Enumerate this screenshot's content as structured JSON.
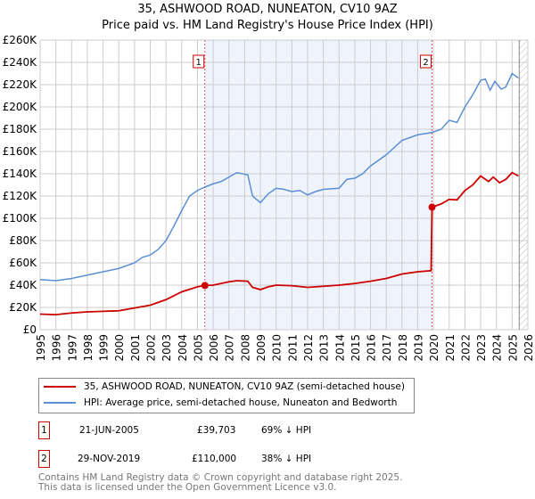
{
  "title_line1": "35, ASHWOOD ROAD, NUNEATON, CV10 9AZ",
  "title_line2": "Price paid vs. HM Land Registry's House Price Index (HPI)",
  "colors": {
    "price": "#cc0000",
    "hpi": "#5b8fd4",
    "shade": "#eef3fc",
    "grid": "#cccccc"
  },
  "chart_data": {
    "type": "line",
    "xlim": [
      1995,
      2026
    ],
    "ylim": [
      0,
      260000
    ],
    "y_ticks": [
      {
        "v": 0,
        "label": "£0"
      },
      {
        "v": 20000,
        "label": "£20K"
      },
      {
        "v": 40000,
        "label": "£40K"
      },
      {
        "v": 60000,
        "label": "£60K"
      },
      {
        "v": 80000,
        "label": "£80K"
      },
      {
        "v": 100000,
        "label": "£100K"
      },
      {
        "v": 120000,
        "label": "£120K"
      },
      {
        "v": 140000,
        "label": "£140K"
      },
      {
        "v": 160000,
        "label": "£160K"
      },
      {
        "v": 180000,
        "label": "£180K"
      },
      {
        "v": 200000,
        "label": "£200K"
      },
      {
        "v": 220000,
        "label": "£220K"
      },
      {
        "v": 240000,
        "label": "£240K"
      },
      {
        "v": 260000,
        "label": "£260K"
      }
    ],
    "x_ticks": [
      "1995",
      "1996",
      "1997",
      "1998",
      "1999",
      "2000",
      "2001",
      "2002",
      "2003",
      "2004",
      "2005",
      "2006",
      "2007",
      "2008",
      "2009",
      "2010",
      "2011",
      "2012",
      "2013",
      "2014",
      "2015",
      "2016",
      "2017",
      "2018",
      "2019",
      "2020",
      "2021",
      "2022",
      "2023",
      "2024",
      "2025",
      "2026"
    ],
    "series": [
      {
        "name": "35, ASHWOOD ROAD, NUNEATON, CV10 9AZ (semi-detached house)",
        "x": [
          1995,
          1996,
          1997,
          1998,
          1999,
          2000,
          2001,
          2002,
          2003,
          2004,
          2005,
          2005.47,
          2006,
          2007,
          2007.5,
          2008.2,
          2008.5,
          2009,
          2009.5,
          2010,
          2011,
          2012,
          2013,
          2014,
          2015,
          2016,
          2017,
          2018,
          2019,
          2019.85,
          2019.91,
          2020.5,
          2021,
          2021.5,
          2022,
          2022.5,
          2023,
          2023.5,
          2023.8,
          2024.2,
          2024.6,
          2025,
          2025.4
        ],
        "y": [
          14000,
          13500,
          15000,
          16000,
          16500,
          17000,
          19500,
          22000,
          27000,
          34000,
          38500,
          39703,
          40000,
          43000,
          44000,
          43500,
          38000,
          36000,
          38500,
          40000,
          39500,
          38000,
          39000,
          40000,
          41500,
          43500,
          46000,
          50000,
          52000,
          53000,
          110000,
          113000,
          117000,
          116500,
          125000,
          130000,
          138000,
          133000,
          137000,
          132000,
          135000,
          141000,
          138000
        ]
      },
      {
        "name": "HPI: Average price, semi-detached house, Nuneaton and Bedworth",
        "x": [
          1995,
          1996,
          1997,
          1998,
          1999,
          2000,
          2001,
          2001.5,
          2002,
          2002.5,
          2003,
          2003.5,
          2004,
          2004.5,
          2005,
          2005.47,
          2006,
          2006.5,
          2007,
          2007.5,
          2008.2,
          2008.5,
          2009,
          2009.5,
          2010,
          2010.5,
          2011,
          2011.5,
          2012,
          2012.5,
          2013,
          2014,
          2014.5,
          2015,
          2015.5,
          2016,
          2017,
          2018,
          2019,
          2019.91,
          2020.5,
          2021,
          2021.5,
          2022,
          2022.5,
          2023,
          2023.3,
          2023.6,
          2023.9,
          2024.3,
          2024.6,
          2025,
          2025.4
        ],
        "y": [
          45000,
          44000,
          46000,
          49000,
          52000,
          55000,
          60000,
          65000,
          67000,
          72000,
          80000,
          93000,
          107000,
          120000,
          125000,
          128000,
          131000,
          133000,
          137000,
          141000,
          139000,
          120000,
          114000,
          122000,
          127000,
          126000,
          124000,
          125000,
          121000,
          124000,
          126000,
          127000,
          135000,
          136000,
          140000,
          147000,
          157000,
          170000,
          175000,
          177000,
          180000,
          188000,
          186000,
          200000,
          211000,
          224000,
          225000,
          215000,
          223000,
          216000,
          218000,
          230000,
          226000
        ]
      }
    ],
    "sales": [
      {
        "label": "1",
        "x": 2005.47,
        "y": 39703
      },
      {
        "label": "2",
        "x": 2019.91,
        "y": 110000
      }
    ]
  },
  "transactions": [
    {
      "num": "1",
      "date": "21-JUN-2005",
      "price": "£39,703",
      "hpi": "69% ↓ HPI"
    },
    {
      "num": "2",
      "date": "29-NOV-2019",
      "price": "£110,000",
      "hpi": "38% ↓ HPI"
    }
  ],
  "footer": {
    "line1": "Contains HM Land Registry data © Crown copyright and database right 2025.",
    "line2": "This data is licensed under the Open Government Licence v3.0."
  }
}
